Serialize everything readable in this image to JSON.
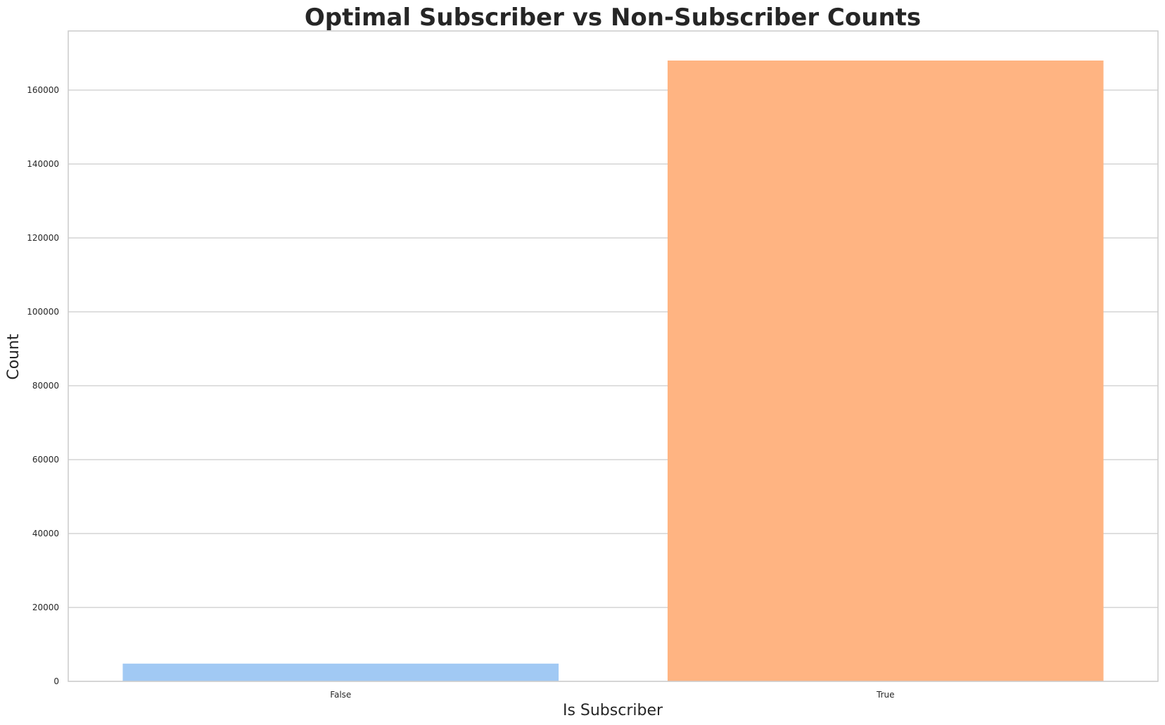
{
  "chart_data": {
    "type": "bar",
    "title": "Optimal Subscriber vs Non-Subscriber Counts",
    "xlabel": "Is Subscriber",
    "ylabel": "Count",
    "categories": [
      "False",
      "True"
    ],
    "values": [
      4800,
      168000
    ],
    "ylim": [
      0,
      176000
    ],
    "yticks": [
      0,
      20000,
      40000,
      60000,
      80000,
      100000,
      120000,
      140000,
      160000
    ],
    "ytick_labels": [
      "0",
      "20000",
      "40000",
      "60000",
      "80000",
      "100000",
      "120000",
      "140000",
      "160000"
    ],
    "colors": [
      "#a1c9f4",
      "#ffb482"
    ],
    "grid": true,
    "grid_axis": "y",
    "legend": "none"
  }
}
